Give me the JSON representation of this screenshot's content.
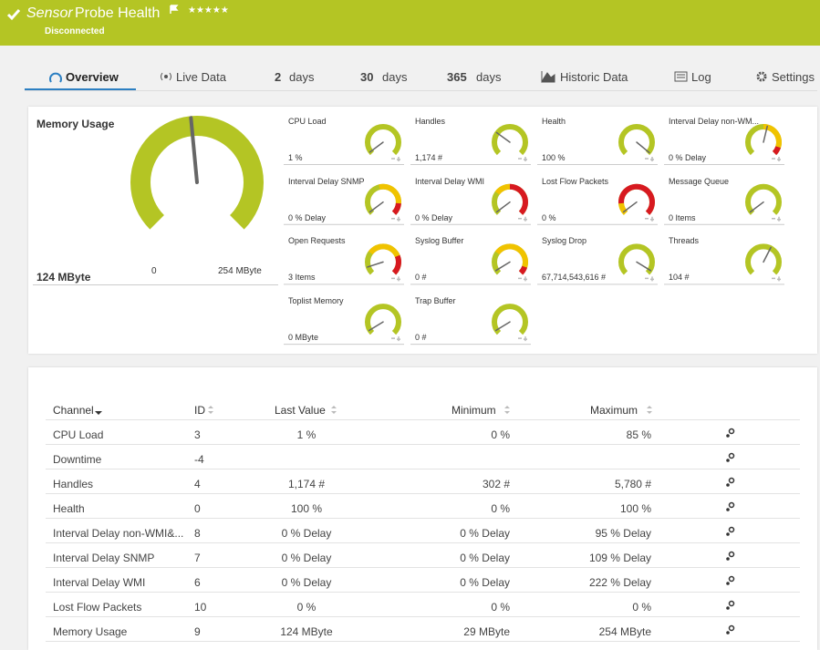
{
  "header": {
    "title_prefix": "Sensor",
    "title": "Probe Health",
    "status": "Disconnected"
  },
  "tabs": [
    {
      "label": "Overview"
    },
    {
      "label": "Live Data"
    },
    {
      "number": "2",
      "unit": "days"
    },
    {
      "number": "30",
      "unit": "days"
    },
    {
      "number": "365",
      "unit": "days"
    },
    {
      "label": "Historic Data"
    },
    {
      "label": "Log"
    },
    {
      "label": "Settings"
    }
  ],
  "main_gauge": {
    "name": "Memory Usage",
    "value": "124 MByte",
    "min": "0",
    "max": "254 MByte"
  },
  "gauges": [
    {
      "name": "CPU Load",
      "value": "1 %"
    },
    {
      "name": "Handles",
      "value": "1,174 #"
    },
    {
      "name": "Health",
      "value": "100 %"
    },
    {
      "name": "Interval Delay non-WM...",
      "value": "0 % Delay"
    },
    {
      "name": "Interval Delay SNMP",
      "value": "0 % Delay"
    },
    {
      "name": "Interval Delay WMI",
      "value": "0 % Delay"
    },
    {
      "name": "Lost Flow Packets",
      "value": "0 %"
    },
    {
      "name": "Message Queue",
      "value": "0 Items"
    },
    {
      "name": "Open Requests",
      "value": "3 Items"
    },
    {
      "name": "Syslog Buffer",
      "value": "0 #"
    },
    {
      "name": "Syslog Drop",
      "value": "67,714,543,616 #"
    },
    {
      "name": "Threads",
      "value": "104 #"
    },
    {
      "name": "Toplist Memory",
      "value": "0 MByte"
    },
    {
      "name": "Trap Buffer",
      "value": "0 #"
    }
  ],
  "table": {
    "columns": [
      "Channel",
      "ID",
      "Last Value",
      "Minimum",
      "Maximum"
    ],
    "rows": [
      [
        "CPU Load",
        3,
        "1 %",
        "0 %",
        "85 %"
      ],
      [
        "Downtime",
        -4,
        null,
        null,
        null
      ],
      [
        "Handles",
        4,
        "1,174 #",
        "302 #",
        "5,780 #"
      ],
      [
        "Health",
        0,
        "100 %",
        "0 %",
        "100 %"
      ],
      [
        "Interval Delay non-WMI&...",
        8,
        "0 % Delay",
        "0 % Delay",
        "95 % Delay"
      ],
      [
        "Interval Delay SNMP",
        7,
        "0 % Delay",
        "0 % Delay",
        "109 % Delay"
      ],
      [
        "Interval Delay WMI",
        6,
        "0 % Delay",
        "0 % Delay",
        "222 % Delay"
      ],
      [
        "Lost Flow Packets",
        10,
        "0 %",
        "0 %",
        "0 %"
      ],
      [
        "Memory Usage",
        9,
        "124 MByte",
        "29 MByte",
        "254 MByte"
      ]
    ]
  }
}
